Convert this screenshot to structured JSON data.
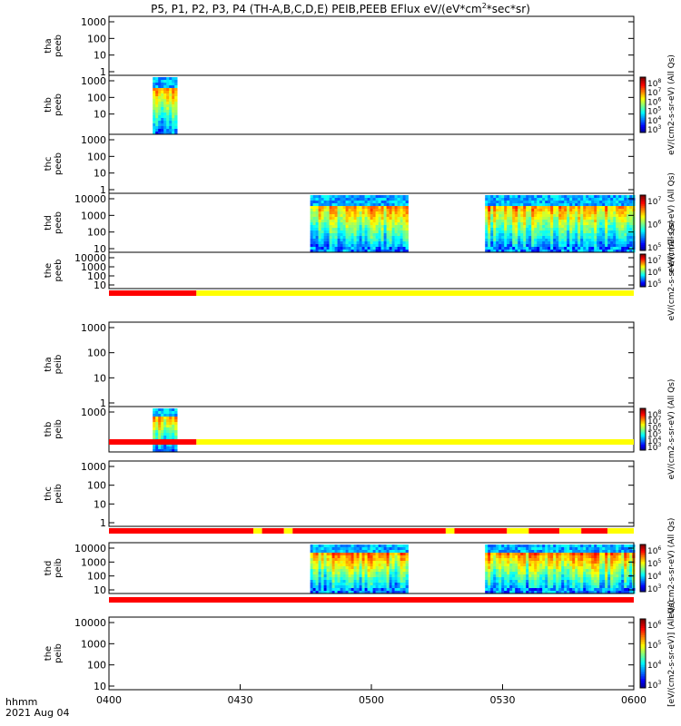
{
  "title": "P5, P1, P2, P3, P4 (TH-A,B,C,D,E) PEIB,PEEB EFlux eV/(eV*cm",
  "title_sup": "2",
  "title_end": "*sec*sr)",
  "corner_label": "hhmm",
  "corner_date": "2021 Aug 04",
  "colors": {
    "flag_red": "#ff0000",
    "flag_yellow": "#ffff00"
  },
  "chart_data": {
    "type": "heatmap",
    "x_range": [
      "04:00",
      "06:00"
    ],
    "x_ticks": [
      "0400",
      "0430",
      "0500",
      "0530",
      "0600"
    ],
    "panels": [
      {
        "id": "tha-peeb",
        "ylabel": [
          "tha",
          "peeb"
        ],
        "yticks": [
          "1000",
          "100",
          "10",
          "1"
        ],
        "colorbar": null,
        "data_blocks": []
      },
      {
        "id": "thb-peeb",
        "ylabel": [
          "thb",
          "peeb"
        ],
        "yticks": [
          "1000",
          "100",
          "10"
        ],
        "colorbar": {
          "label": "eV/(cm2-s-sr-eV) (All Qs)",
          "ticks": [
            "10^8",
            "10^7",
            "10^6",
            "10^5",
            "10^4",
            "10^3"
          ]
        },
        "data_blocks": [
          {
            "start": "04:10",
            "end": "04:15"
          }
        ]
      },
      {
        "id": "thc-peeb",
        "ylabel": [
          "thc",
          "peeb"
        ],
        "yticks": [
          "1000",
          "100",
          "10",
          "1"
        ],
        "colorbar": null,
        "data_blocks": []
      },
      {
        "id": "thd-peeb",
        "ylabel": [
          "thd",
          "peeb"
        ],
        "yticks": [
          "10000",
          "1000",
          "100",
          "10"
        ],
        "colorbar": {
          "label": "eV/(cm2-s-sr-eV) (All Qs)",
          "ticks": [
            "10^7",
            "10^6",
            "10^5"
          ]
        },
        "data_blocks": [
          {
            "start": "04:46",
            "end": "05:08"
          },
          {
            "start": "05:26",
            "end": "06:00"
          }
        ]
      },
      {
        "id": "the-peeb",
        "ylabel": [
          "the",
          "peeb"
        ],
        "yticks": [
          "10000",
          "1000",
          "100",
          "10"
        ],
        "colorbar": {
          "label": "eV/(cm2-s-sr-eV) (All Qs)",
          "ticks": [
            "10^7",
            "10^6",
            "10^5"
          ]
        },
        "data_blocks": []
      },
      {
        "id": "tha-peib",
        "ylabel": [
          "tha",
          "peib"
        ],
        "yticks": [
          "1000",
          "100",
          "10",
          "1"
        ],
        "colorbar": null,
        "data_blocks": []
      },
      {
        "id": "thb-peib",
        "ylabel": [
          "thb",
          "peib"
        ],
        "yticks": [
          "1000"
        ],
        "colorbar": {
          "label": "eV/(cm2-s-sr-eV) (All Qs)",
          "ticks": [
            "10^8",
            "10^7",
            "10^6",
            "10^5",
            "10^4",
            "10^3"
          ]
        },
        "data_blocks": [
          {
            "start": "04:10",
            "end": "04:15"
          }
        ]
      },
      {
        "id": "thc-peib",
        "ylabel": [
          "thc",
          "peib"
        ],
        "yticks": [
          "1000",
          "100",
          "10",
          "1"
        ],
        "colorbar": null,
        "data_blocks": []
      },
      {
        "id": "thd-peib",
        "ylabel": [
          "thd",
          "peib"
        ],
        "yticks": [
          "10000",
          "1000",
          "100",
          "10"
        ],
        "colorbar": {
          "label": "eV/(cm2-s-sr-eV) (All Qs)",
          "ticks": [
            "10^6",
            "10^5",
            "10^4",
            "10^3"
          ]
        },
        "data_blocks": [
          {
            "start": "04:46",
            "end": "05:08"
          },
          {
            "start": "05:26",
            "end": "06:00"
          }
        ]
      },
      {
        "id": "the-peib",
        "ylabel": [
          "the",
          "peib"
        ],
        "yticks": [
          "10000",
          "1000",
          "100",
          "10"
        ],
        "colorbar": {
          "label": "[eV/(cm2-s-sr-eV)] (All Qs)",
          "ticks": [
            "10^6",
            "10^5",
            "10^4",
            "10^3"
          ]
        },
        "data_blocks": []
      }
    ],
    "flag_bars": [
      {
        "after_panel": "the-peeb",
        "segments": [
          {
            "start": "04:00",
            "end": "04:20",
            "color": "red"
          },
          {
            "start": "04:20",
            "end": "06:00",
            "color": "yellow"
          }
        ]
      },
      {
        "after_panel": "tha-peib",
        "segments": [
          {
            "start": "04:00",
            "end": "04:20",
            "color": "red"
          },
          {
            "start": "04:20",
            "end": "06:00",
            "color": "yellow"
          }
        ]
      },
      {
        "after_panel": "thc-peib",
        "segments": [
          {
            "start": "04:00",
            "end": "04:33",
            "color": "red"
          },
          {
            "start": "04:33",
            "end": "04:35",
            "color": "yellow"
          },
          {
            "start": "04:35",
            "end": "04:40",
            "color": "red"
          },
          {
            "start": "04:40",
            "end": "04:42",
            "color": "yellow"
          },
          {
            "start": "04:42",
            "end": "05:17",
            "color": "red"
          },
          {
            "start": "05:17",
            "end": "05:19",
            "color": "yellow"
          },
          {
            "start": "05:19",
            "end": "05:31",
            "color": "red"
          },
          {
            "start": "05:31",
            "end": "05:36",
            "color": "yellow"
          },
          {
            "start": "05:36",
            "end": "05:43",
            "color": "red"
          },
          {
            "start": "05:43",
            "end": "05:48",
            "color": "yellow"
          },
          {
            "start": "05:48",
            "end": "05:54",
            "color": "red"
          },
          {
            "start": "05:54",
            "end": "06:00",
            "color": "yellow"
          }
        ]
      },
      {
        "after_panel": "thd-peib",
        "segments": [
          {
            "start": "04:00",
            "end": "06:00",
            "color": "red"
          }
        ]
      }
    ]
  }
}
